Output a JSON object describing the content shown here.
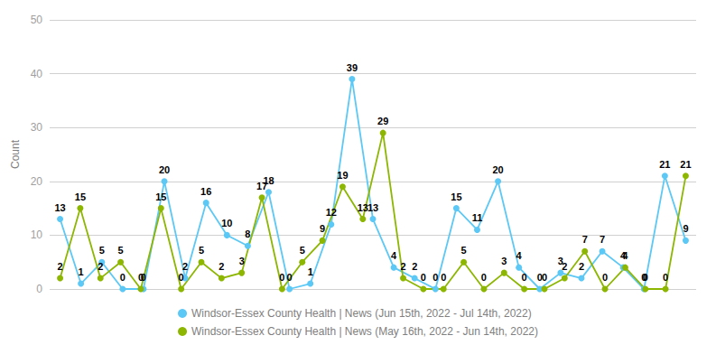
{
  "chart_data": {
    "type": "line",
    "ylabel": "Count",
    "series": [
      {
        "name": "Windsor-Essex County Health | News (Jun 15th, 2022 - Jul 14th, 2022)",
        "color": "#5bc8f5",
        "marker": "circle",
        "values": [
          13,
          1,
          5,
          0,
          0,
          20,
          2,
          16,
          10,
          8,
          18,
          0,
          1,
          12,
          39,
          13,
          4,
          2,
          0,
          15,
          11,
          20,
          4,
          0,
          3,
          2,
          7,
          4,
          0,
          21,
          9
        ]
      },
      {
        "name": "Windsor-Essex County Health | News (May 16th, 2022 - Jun 14th, 2022)",
        "color": "#8db600",
        "marker": "circle",
        "values": [
          2,
          15,
          2,
          5,
          0,
          15,
          0,
          5,
          2,
          3,
          17,
          0,
          5,
          9,
          19,
          13,
          29,
          2,
          0,
          0,
          5,
          0,
          3,
          0,
          0,
          2,
          7,
          0,
          4,
          0,
          0,
          21
        ]
      }
    ],
    "ylim": [
      0,
      50
    ],
    "yticks": [
      0,
      10,
      20,
      30,
      40,
      50
    ],
    "grid": true,
    "legend": "bottom",
    "data_labels": true,
    "tick_labels": "y"
  }
}
